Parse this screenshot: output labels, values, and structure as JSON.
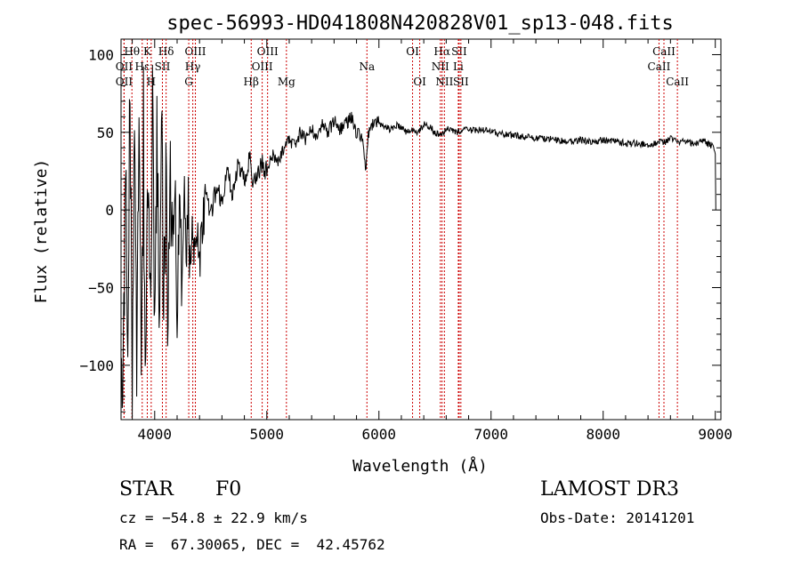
{
  "chart_data": {
    "type": "line",
    "title": "spec-56993-HD041808N420828V01_sp13-048.fits",
    "xlabel": "Wavelength (Å)",
    "ylabel": "Flux (relative)",
    "xlim": [
      3700,
      9050
    ],
    "ylim": [
      -135,
      110
    ],
    "xticks": [
      4000,
      5000,
      6000,
      7000,
      8000,
      9000
    ],
    "xtick_labels": [
      "4000",
      "5000",
      "6000",
      "7000",
      "8000",
      "9000"
    ],
    "yticks": [
      100,
      50,
      0,
      -50,
      -100
    ],
    "ytick_labels": [
      "100",
      "50",
      "0",
      "−50",
      "−100"
    ],
    "line_color": "#000000",
    "marker_color": "#cc0000",
    "series": [
      {
        "name": "spectrum",
        "x": [
          3700,
          3720,
          3740,
          3760,
          3780,
          3800,
          3820,
          3840,
          3860,
          3880,
          3900,
          3920,
          3940,
          3960,
          3980,
          4000,
          4020,
          4040,
          4060,
          4080,
          4100,
          4120,
          4140,
          4160,
          4180,
          4200,
          4220,
          4240,
          4260,
          4280,
          4300,
          4320,
          4340,
          4360,
          4380,
          4400,
          4450,
          4500,
          4550,
          4600,
          4650,
          4700,
          4750,
          4800,
          4850,
          4880,
          4900,
          4950,
          5000,
          5050,
          5100,
          5150,
          5200,
          5250,
          5300,
          5350,
          5400,
          5450,
          5500,
          5550,
          5600,
          5650,
          5700,
          5750,
          5800,
          5850,
          5880,
          5900,
          5920,
          5950,
          6000,
          6050,
          6100,
          6150,
          6200,
          6250,
          6300,
          6350,
          6400,
          6450,
          6500,
          6560,
          6600,
          6650,
          6700,
          6750,
          6800,
          6900,
          7000,
          7100,
          7200,
          7300,
          7400,
          7500,
          7600,
          7700,
          7800,
          7900,
          8000,
          8100,
          8200,
          8300,
          8400,
          8500,
          8550,
          8600,
          8660,
          8700,
          8800,
          8900,
          8950,
          8980,
          9000,
          9005
        ],
        "y": [
          -50,
          -120,
          60,
          -100,
          80,
          -130,
          40,
          -90,
          75,
          -110,
          50,
          -125,
          30,
          -85,
          65,
          -60,
          35,
          -70,
          45,
          -55,
          20,
          -80,
          30,
          -20,
          25,
          -75,
          10,
          -40,
          15,
          -30,
          0,
          -45,
          -10,
          -20,
          -5,
          -30,
          10,
          -5,
          15,
          5,
          25,
          10,
          30,
          20,
          35,
          15,
          20,
          30,
          25,
          35,
          30,
          40,
          45,
          42,
          50,
          45,
          52,
          48,
          55,
          50,
          58,
          52,
          55,
          60,
          50,
          48,
          25,
          45,
          52,
          55,
          56,
          54,
          52,
          55,
          53,
          50,
          52,
          50,
          55,
          54,
          50,
          48,
          53,
          52,
          50,
          52,
          51,
          52,
          50,
          49,
          48,
          47,
          46,
          46,
          45,
          44,
          45,
          44,
          45,
          44,
          43,
          43,
          42,
          44,
          43,
          46,
          44,
          44,
          43,
          44,
          42,
          41,
          38,
          0
        ]
      }
    ],
    "line_markers": [
      {
        "label": "Hθ",
        "x": 3797,
        "row": 1
      },
      {
        "label": "OII",
        "x": 3727,
        "row": 2
      },
      {
        "label": "OII",
        "x": 3727,
        "row": 3
      },
      {
        "label": "K",
        "x": 3934,
        "row": 1
      },
      {
        "label": "Hε",
        "x": 3889,
        "row": 2
      },
      {
        "label": "H",
        "x": 3969,
        "row": 3
      },
      {
        "label": "Hδ",
        "x": 4102,
        "row": 1
      },
      {
        "label": "SII",
        "x": 4069,
        "row": 2
      },
      {
        "label": "OIII",
        "x": 4363,
        "row": 1
      },
      {
        "label": "Hγ",
        "x": 4340,
        "row": 2
      },
      {
        "label": "G",
        "x": 4304,
        "row": 3
      },
      {
        "label": "OIII",
        "x": 5007,
        "row": 1
      },
      {
        "label": "OIII",
        "x": 4959,
        "row": 2
      },
      {
        "label": "Hβ",
        "x": 4861,
        "row": 3
      },
      {
        "label": "Mg",
        "x": 5175,
        "row": 3
      },
      {
        "label": "Na",
        "x": 5893,
        "row": 2
      },
      {
        "label": "OI",
        "x": 6300,
        "row": 1
      },
      {
        "label": "OI",
        "x": 6364,
        "row": 3
      },
      {
        "label": "Hα",
        "x": 6563,
        "row": 1
      },
      {
        "label": "SII",
        "x": 6716,
        "row": 1
      },
      {
        "label": "NII",
        "x": 6548,
        "row": 2
      },
      {
        "label": "Li",
        "x": 6708,
        "row": 2
      },
      {
        "label": "NII",
        "x": 6584,
        "row": 3
      },
      {
        "label": "SII",
        "x": 6731,
        "row": 3
      },
      {
        "label": "CaII",
        "x": 8542,
        "row": 1
      },
      {
        "label": "CaII",
        "x": 8498,
        "row": 2
      },
      {
        "label": "CaII",
        "x": 8662,
        "row": 3
      }
    ]
  },
  "info": {
    "object_class": "STAR",
    "subclass": "F0",
    "survey": "LAMOST DR3",
    "cz": "cz = −54.8 ± 22.9 km/s",
    "obs_date": "Obs-Date: 20141201",
    "coords": "RA =  67.30065, DEC =  42.45762"
  }
}
